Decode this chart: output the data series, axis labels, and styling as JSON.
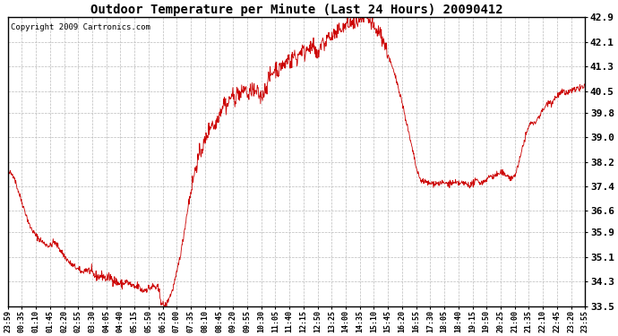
{
  "title": "Outdoor Temperature per Minute (Last 24 Hours) 20090412",
  "copyright": "Copyright 2009 Cartronics.com",
  "line_color": "#cc0000",
  "bg_color": "#ffffff",
  "grid_color": "#bbbbbb",
  "ylim": [
    33.5,
    42.9
  ],
  "yticks": [
    33.5,
    34.3,
    35.1,
    35.9,
    36.6,
    37.4,
    38.2,
    39.0,
    39.8,
    40.5,
    41.3,
    42.1,
    42.9
  ],
  "xtick_labels": [
    "23:59",
    "00:35",
    "01:10",
    "01:45",
    "02:20",
    "02:55",
    "03:30",
    "04:05",
    "04:40",
    "05:15",
    "05:50",
    "06:25",
    "07:00",
    "07:35",
    "08:10",
    "08:45",
    "09:20",
    "09:55",
    "10:30",
    "11:05",
    "11:40",
    "12:15",
    "12:50",
    "13:25",
    "14:00",
    "14:35",
    "15:10",
    "15:45",
    "16:20",
    "16:55",
    "17:30",
    "18:05",
    "18:40",
    "19:15",
    "19:50",
    "20:25",
    "21:00",
    "21:35",
    "22:10",
    "22:45",
    "23:20",
    "23:55"
  ],
  "n_points": 1440,
  "n_xticks": 42
}
